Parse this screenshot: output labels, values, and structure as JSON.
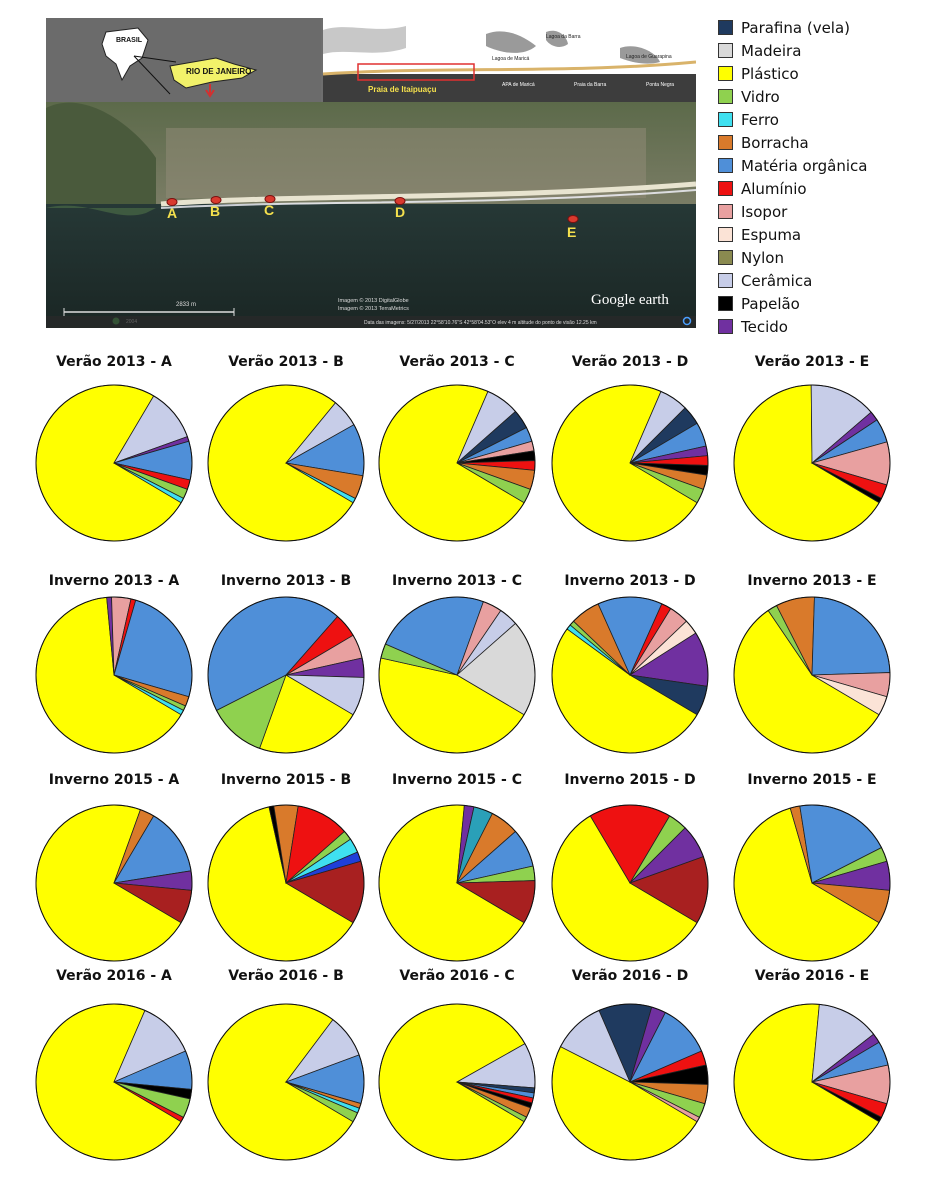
{
  "map": {
    "country_label": "BRASIL",
    "state_label": "RIO DE JANEIRO",
    "inset_place_labels": [
      "Praia de Itaipuaçu",
      "Lagoa de Maricá",
      "Lagoa da Barra",
      "APA de Maricá",
      "Praia da Barra",
      "Lagoa de Guarapina",
      "Ponta Negra"
    ],
    "point_labels": [
      "A",
      "B",
      "C",
      "D",
      "E"
    ],
    "scale_text": "2833 m",
    "year_label": "2004",
    "credits": [
      "Imagem © 2013 DigitalGlobe",
      "Imagem © 2013 TerraMetrics"
    ],
    "status_bar": "Data das imagens: 5/27/2013    22°58'10.76\"S   42°58'04.53\"O  elev   4 m    altitude do ponto de visão  12.25 km",
    "brand": "Google earth"
  },
  "legend": [
    {
      "label": "Parafina (vela)",
      "color": "#1f3a5f"
    },
    {
      "label": "Madeira",
      "color": "#d9d9d9"
    },
    {
      "label": "Plástico",
      "color": "#ffff00"
    },
    {
      "label": "Vidro",
      "color": "#8fd14f"
    },
    {
      "label": "Ferro",
      "color": "#3fe0f0"
    },
    {
      "label": "Borracha",
      "color": "#d97a2b"
    },
    {
      "label": "Matéria orgânica",
      "color": "#4f8fd8"
    },
    {
      "label": "Alumínio",
      "color": "#ee1111"
    },
    {
      "label": "Isopor",
      "color": "#e8a0a0"
    },
    {
      "label": "Espuma",
      "color": "#fbe3d6"
    },
    {
      "label": "Nylon",
      "color": "#8a8a50"
    },
    {
      "label": "Cerâmica",
      "color": "#c7cde8"
    },
    {
      "label": "Papelão",
      "color": "#000000"
    },
    {
      "label": "Tecido",
      "color": "#7030a0"
    }
  ],
  "extra_colors": {
    "dark_red": "#a82020",
    "blue": "#1f3fd8",
    "teal": "#2aa0b8"
  },
  "chart_data": [
    {
      "type": "pie",
      "title": "Verão 2013 - A",
      "slices": [
        {
          "cat": "Plástico",
          "value": 75
        },
        {
          "cat": "Cerâmica",
          "value": 11
        },
        {
          "cat": "Tecido",
          "value": 1
        },
        {
          "cat": "Matéria orgânica",
          "value": 8
        },
        {
          "cat": "Alumínio",
          "value": 2
        },
        {
          "cat": "Vidro",
          "value": 2
        },
        {
          "cat": "Ferro",
          "value": 1
        }
      ]
    },
    {
      "type": "pie",
      "title": "Verão 2013 - B",
      "slices": [
        {
          "cat": "Plástico",
          "value": 79
        },
        {
          "cat": "Cerâmica",
          "value": 6
        },
        {
          "cat": "Matéria orgânica",
          "value": 11
        },
        {
          "cat": "Borracha",
          "value": 5
        },
        {
          "cat": "Ferro",
          "value": 1
        }
      ]
    },
    {
      "type": "pie",
      "title": "Verão 2013 - C",
      "slices": [
        {
          "cat": "Plástico",
          "value": 73
        },
        {
          "cat": "Cerâmica",
          "value": 7
        },
        {
          "cat": "Parafina (vela)",
          "value": 4
        },
        {
          "cat": "Matéria orgânica",
          "value": 3
        },
        {
          "cat": "Isopor",
          "value": 2
        },
        {
          "cat": "Papelão",
          "value": 2
        },
        {
          "cat": "Alumínio",
          "value": 2
        },
        {
          "cat": "Borracha",
          "value": 4
        },
        {
          "cat": "Vidro",
          "value": 3
        }
      ]
    },
    {
      "type": "pie",
      "title": "Verão 2013 - D",
      "slices": [
        {
          "cat": "Plástico",
          "value": 73
        },
        {
          "cat": "Cerâmica",
          "value": 6
        },
        {
          "cat": "Parafina (vela)",
          "value": 4
        },
        {
          "cat": "Matéria orgânica",
          "value": 5
        },
        {
          "cat": "Tecido",
          "value": 2
        },
        {
          "cat": "Alumínio",
          "value": 2
        },
        {
          "cat": "Papelão",
          "value": 2
        },
        {
          "cat": "Borracha",
          "value": 3
        },
        {
          "cat": "Vidro",
          "value": 3
        }
      ]
    },
    {
      "type": "pie",
      "title": "Verão 2013 - E",
      "slices": [
        {
          "cat": "Plástico",
          "value": 67
        },
        {
          "cat": "Cerâmica",
          "value": 14
        },
        {
          "cat": "Tecido",
          "value": 2
        },
        {
          "cat": "Matéria orgânica",
          "value": 5
        },
        {
          "cat": "Isopor",
          "value": 9
        },
        {
          "cat": "Alumínio",
          "value": 3
        },
        {
          "cat": "Papelão",
          "value": 1
        }
      ]
    },
    {
      "type": "pie",
      "title": "Inverno 2013 - A",
      "slices": [
        {
          "cat": "Plástico",
          "value": 65
        },
        {
          "cat": "Tecido",
          "value": 1
        },
        {
          "cat": "Isopor",
          "value": 4
        },
        {
          "cat": "Alumínio",
          "value": 1
        },
        {
          "cat": "Matéria orgânica",
          "value": 25
        },
        {
          "cat": "Borracha",
          "value": 2
        },
        {
          "cat": "Vidro",
          "value": 1
        },
        {
          "cat": "Ferro",
          "value": 1
        }
      ]
    },
    {
      "type": "pie",
      "title": "Inverno 2013 - B",
      "slices": [
        {
          "cat": "Plástico",
          "value": 22
        },
        {
          "cat": "Vidro",
          "value": 12
        },
        {
          "cat": "Matéria orgânica",
          "value": 44
        },
        {
          "cat": "Alumínio",
          "value": 5
        },
        {
          "cat": "Isopor",
          "value": 5
        },
        {
          "cat": "Tecido",
          "value": 4
        },
        {
          "cat": "Cerâmica",
          "value": 8
        }
      ]
    },
    {
      "type": "pie",
      "title": "Inverno 2013 - C",
      "slices": [
        {
          "cat": "Plástico",
          "value": 45
        },
        {
          "cat": "Vidro",
          "value": 3
        },
        {
          "cat": "Matéria orgânica",
          "value": 24
        },
        {
          "cat": "Isopor",
          "value": 4
        },
        {
          "cat": "Cerâmica",
          "value": 4
        },
        {
          "cat": "Madeira",
          "value": 20
        }
      ]
    },
    {
      "type": "pie",
      "title": "Inverno 2013 - D",
      "slices": [
        {
          "cat": "Plástico",
          "value": 50
        },
        {
          "cat": "Ferro",
          "value": 1
        },
        {
          "cat": "Vidro",
          "value": 1
        },
        {
          "cat": "Borracha",
          "value": 6
        },
        {
          "cat": "Matéria orgânica",
          "value": 13
        },
        {
          "cat": "Alumínio",
          "value": 2
        },
        {
          "cat": "Isopor",
          "value": 4
        },
        {
          "cat": "Espuma",
          "value": 3
        },
        {
          "cat": "Tecido",
          "value": 11
        },
        {
          "cat": "Parafina (vela)",
          "value": 6
        }
      ]
    },
    {
      "type": "pie",
      "title": "Inverno 2013 - E",
      "slices": [
        {
          "cat": "Plástico",
          "value": 57
        },
        {
          "cat": "Vidro",
          "value": 2
        },
        {
          "cat": "Borracha",
          "value": 8
        },
        {
          "cat": "Matéria orgânica",
          "value": 24
        },
        {
          "cat": "Isopor",
          "value": 5
        },
        {
          "cat": "Espuma",
          "value": 4
        }
      ]
    },
    {
      "type": "pie",
      "title": "Inverno 2015 - A",
      "slices": [
        {
          "cat": "Plástico",
          "value": 72
        },
        {
          "cat": "Borracha",
          "value": 3
        },
        {
          "cat": "Matéria orgânica",
          "value": 14
        },
        {
          "cat": "Tecido",
          "value": 4
        },
        {
          "cat": "Outros (vermelho escuro)",
          "value": 7
        }
      ]
    },
    {
      "type": "pie",
      "title": "Inverno 2015 - B",
      "slices": [
        {
          "cat": "Plástico",
          "value": 63
        },
        {
          "cat": "Papelão",
          "value": 1
        },
        {
          "cat": "Borracha",
          "value": 5
        },
        {
          "cat": "Alumínio",
          "value": 11
        },
        {
          "cat": "Vidro",
          "value": 2
        },
        {
          "cat": "Ferro",
          "value": 3
        },
        {
          "cat": "Outros (azul)",
          "value": 2
        },
        {
          "cat": "Outros (vermelho escuro)",
          "value": 13
        }
      ]
    },
    {
      "type": "pie",
      "title": "Inverno 2015 - C",
      "slices": [
        {
          "cat": "Plástico",
          "value": 68
        },
        {
          "cat": "Tecido",
          "value": 2
        },
        {
          "cat": "Outros (azul-petróleo)",
          "value": 4
        },
        {
          "cat": "Borracha",
          "value": 6
        },
        {
          "cat": "Matéria orgânica",
          "value": 8
        },
        {
          "cat": "Vidro",
          "value": 3
        },
        {
          "cat": "Outros (vermelho escuro)",
          "value": 9
        }
      ]
    },
    {
      "type": "pie",
      "title": "Inverno 2015 - D",
      "slices": [
        {
          "cat": "Plástico",
          "value": 58
        },
        {
          "cat": "Alumínio",
          "value": 17
        },
        {
          "cat": "Vidro",
          "value": 4
        },
        {
          "cat": "Tecido",
          "value": 7
        },
        {
          "cat": "Outros (vermelho escuro)",
          "value": 14
        }
      ]
    },
    {
      "type": "pie",
      "title": "Inverno 2015 - E",
      "slices": [
        {
          "cat": "Plástico",
          "value": 62
        },
        {
          "cat": "Borracha",
          "value": 2
        },
        {
          "cat": "Matéria orgânica",
          "value": 20
        },
        {
          "cat": "Vidro",
          "value": 3
        },
        {
          "cat": "Tecido",
          "value": 6
        },
        {
          "cat": "Borracha",
          "value": 7
        }
      ]
    },
    {
      "type": "pie",
      "title": "Verão 2016 - A",
      "slices": [
        {
          "cat": "Plástico",
          "value": 73
        },
        {
          "cat": "Cerâmica",
          "value": 12
        },
        {
          "cat": "Matéria orgânica",
          "value": 8
        },
        {
          "cat": "Papelão",
          "value": 2
        },
        {
          "cat": "Vidro",
          "value": 4
        },
        {
          "cat": "Alumínio",
          "value": 1
        }
      ]
    },
    {
      "type": "pie",
      "title": "Verão 2016 - B",
      "slices": [
        {
          "cat": "Plástico",
          "value": 76
        },
        {
          "cat": "Cerâmica",
          "value": 9
        },
        {
          "cat": "Matéria orgânica",
          "value": 10
        },
        {
          "cat": "Borracha",
          "value": 1
        },
        {
          "cat": "Ferro",
          "value": 1
        },
        {
          "cat": "Vidro",
          "value": 2
        }
      ]
    },
    {
      "type": "pie",
      "title": "Verão 2016 - C",
      "slices": [
        {
          "cat": "Plástico",
          "value": 80
        },
        {
          "cat": "Cerâmica",
          "value": 9
        },
        {
          "cat": "Parafina (vela)",
          "value": 1
        },
        {
          "cat": "Matéria orgânica",
          "value": 1
        },
        {
          "cat": "Alumínio",
          "value": 1
        },
        {
          "cat": "Papelão",
          "value": 1
        },
        {
          "cat": "Borracha",
          "value": 2
        },
        {
          "cat": "Vidro",
          "value": 1
        }
      ]
    },
    {
      "type": "pie",
      "title": "Verão 2016 - D",
      "slices": [
        {
          "cat": "Plástico",
          "value": 49
        },
        {
          "cat": "Cerâmica",
          "value": 11
        },
        {
          "cat": "Parafina (vela)",
          "value": 11
        },
        {
          "cat": "Tecido",
          "value": 3
        },
        {
          "cat": "Matéria orgânica",
          "value": 11
        },
        {
          "cat": "Alumínio",
          "value": 3
        },
        {
          "cat": "Papelão",
          "value": 4
        },
        {
          "cat": "Borracha",
          "value": 4
        },
        {
          "cat": "Vidro",
          "value": 3
        },
        {
          "cat": "Isopor",
          "value": 1
        }
      ]
    },
    {
      "type": "pie",
      "title": "Verão 2016 - E",
      "slices": [
        {
          "cat": "Plástico",
          "value": 68
        },
        {
          "cat": "Cerâmica",
          "value": 13
        },
        {
          "cat": "Tecido",
          "value": 2
        },
        {
          "cat": "Matéria orgânica",
          "value": 5
        },
        {
          "cat": "Isopor",
          "value": 8
        },
        {
          "cat": "Alumínio",
          "value": 3
        },
        {
          "cat": "Papelão",
          "value": 1
        }
      ]
    }
  ]
}
